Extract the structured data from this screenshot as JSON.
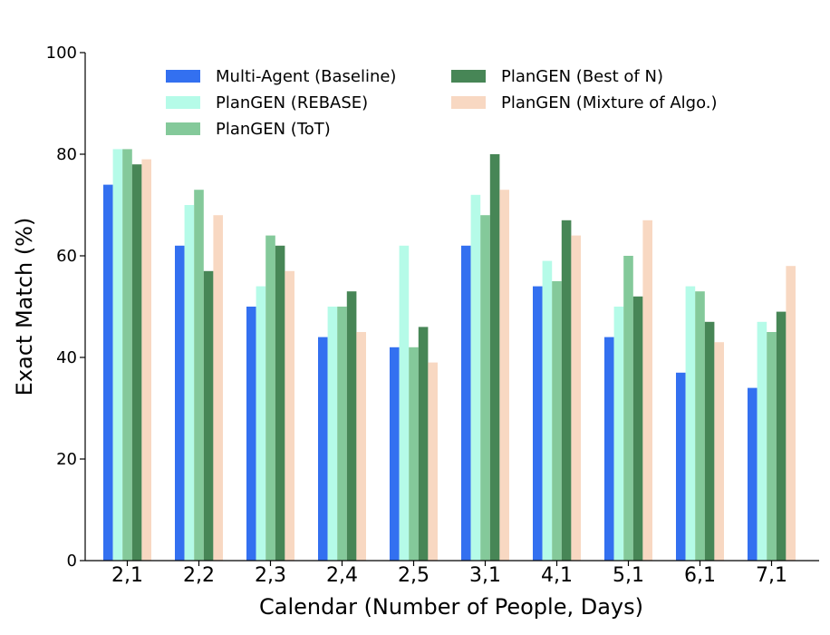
{
  "chart_data": {
    "type": "bar",
    "xlabel": "Calendar (Number of People, Days)",
    "ylabel": "Exact Match (%)",
    "ylim": [
      0,
      100
    ],
    "yticks": [
      0,
      20,
      40,
      60,
      80,
      100
    ],
    "grid": false,
    "legend_position": "top",
    "categories": [
      "2,1",
      "2,2",
      "2,3",
      "2,4",
      "2,5",
      "3,1",
      "4,1",
      "5,1",
      "6,1",
      "7,1"
    ],
    "series": [
      {
        "name": "Multi-Agent (Baseline)",
        "color": "#3370f0",
        "values": [
          74,
          62,
          50,
          44,
          42,
          62,
          54,
          44,
          37,
          34
        ]
      },
      {
        "name": "PlanGEN (REBASE)",
        "color": "#b5fbe8",
        "values": [
          81,
          70,
          54,
          50,
          62,
          72,
          59,
          50,
          54,
          47
        ]
      },
      {
        "name": "PlanGEN (ToT)",
        "color": "#84c99a",
        "values": [
          81,
          73,
          64,
          50,
          42,
          68,
          55,
          60,
          53,
          45
        ]
      },
      {
        "name": "PlanGEN (Best of N)",
        "color": "#478656",
        "values": [
          78,
          57,
          62,
          53,
          46,
          80,
          67,
          52,
          47,
          49
        ]
      },
      {
        "name": "PlanGEN (Mixture of Algo.)",
        "color": "#f8d8c2",
        "values": [
          79,
          68,
          57,
          45,
          39,
          73,
          64,
          67,
          43,
          58
        ]
      }
    ]
  }
}
